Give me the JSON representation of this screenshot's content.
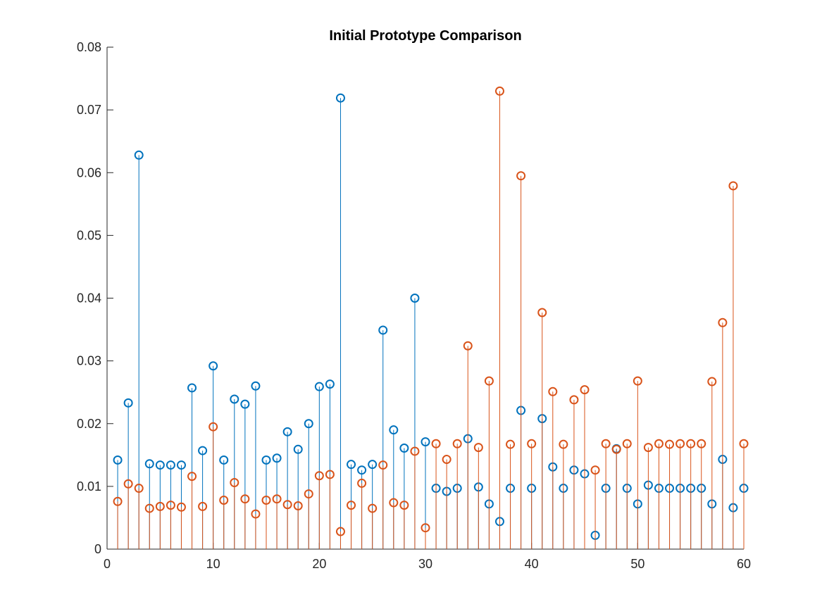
{
  "chart_data": {
    "type": "scatter",
    "subtype": "stem",
    "title": "Initial Prototype Comparison",
    "xlabel": "",
    "ylabel": "",
    "xlim": [
      0,
      60
    ],
    "ylim": [
      0,
      0.08
    ],
    "xticks": [
      0,
      10,
      20,
      30,
      40,
      50,
      60
    ],
    "xtick_labels": [
      "0",
      "10",
      "20",
      "30",
      "40",
      "50",
      "60"
    ],
    "yticks": [
      0,
      0.01,
      0.02,
      0.03,
      0.04,
      0.05,
      0.06,
      0.07,
      0.08
    ],
    "ytick_labels": [
      "0",
      "0.01",
      "0.02",
      "0.03",
      "0.04",
      "0.05",
      "0.06",
      "0.07",
      "0.08"
    ],
    "grid": false,
    "legend": "none",
    "marker": "circle",
    "x": [
      1,
      2,
      3,
      4,
      5,
      6,
      7,
      8,
      9,
      10,
      11,
      12,
      13,
      14,
      15,
      16,
      17,
      18,
      19,
      20,
      21,
      22,
      23,
      24,
      25,
      26,
      27,
      28,
      29,
      30,
      31,
      32,
      33,
      34,
      35,
      36,
      37,
      38,
      39,
      40,
      41,
      42,
      43,
      44,
      45,
      46,
      47,
      48,
      49,
      50,
      51,
      52,
      53,
      54,
      55,
      56,
      57,
      58,
      59,
      60
    ],
    "series": [
      {
        "color": "#0072BD",
        "values": [
          0.0142,
          0.0233,
          0.0628,
          0.0136,
          0.0134,
          0.0134,
          0.0134,
          0.0257,
          0.0157,
          0.0292,
          0.0142,
          0.0239,
          0.0231,
          0.026,
          0.0142,
          0.0145,
          0.0187,
          0.0159,
          0.02,
          0.0259,
          0.0263,
          0.0719,
          0.0135,
          0.0126,
          0.0135,
          0.0349,
          0.019,
          0.0161,
          0.04,
          0.0171,
          0.0097,
          0.0092,
          0.0097,
          0.0176,
          0.0099,
          0.0072,
          0.0044,
          0.0097,
          0.0221,
          0.0097,
          0.0208,
          0.0131,
          0.0097,
          0.0126,
          0.012,
          0.0022,
          0.0097,
          0.016,
          0.0097,
          0.0072,
          0.0102,
          0.0097,
          0.0097,
          0.0097,
          0.0097,
          0.0097,
          0.0072,
          0.0143,
          0.0066,
          0.0097
        ]
      },
      {
        "color": "#D95319",
        "values": [
          0.0076,
          0.0104,
          0.0097,
          0.0065,
          0.0068,
          0.007,
          0.0067,
          0.0116,
          0.0068,
          0.0195,
          0.0078,
          0.0106,
          0.008,
          0.0056,
          0.0078,
          0.008,
          0.0071,
          0.0069,
          0.0088,
          0.0117,
          0.0119,
          0.0028,
          0.007,
          0.0105,
          0.0065,
          0.0134,
          0.0074,
          0.007,
          0.0156,
          0.0034,
          0.0168,
          0.0143,
          0.0168,
          0.0324,
          0.0162,
          0.0268,
          0.073,
          0.0167,
          0.0595,
          0.0168,
          0.0377,
          0.0251,
          0.0167,
          0.0238,
          0.0254,
          0.0126,
          0.0168,
          0.0159,
          0.0168,
          0.0268,
          0.0162,
          0.0168,
          0.0167,
          0.0168,
          0.0168,
          0.0168,
          0.0267,
          0.0361,
          0.0579,
          0.0168
        ]
      }
    ]
  }
}
